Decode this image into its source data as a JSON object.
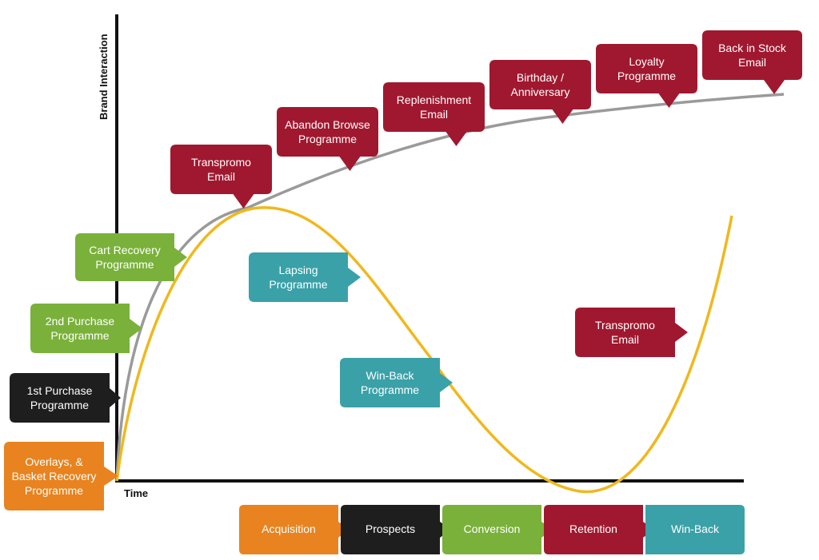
{
  "axes": {
    "y_label": "Brand Interaction",
    "x_label": "Time"
  },
  "colors": {
    "red": "#a0182f",
    "green": "#7ab13a",
    "teal": "#3aa1a8",
    "black": "#1e1e1e",
    "orange": "#e8831f",
    "gray_curve": "#9a9a9a",
    "yellow_curve": "#f0b81d"
  },
  "callouts": [
    {
      "id": "overlays",
      "lines": [
        "Overlays, &",
        "Basket Recovery",
        "Programme"
      ],
      "color": "orange"
    },
    {
      "id": "first-purchase",
      "lines": [
        "1st Purchase",
        "Programme"
      ],
      "color": "black"
    },
    {
      "id": "second-purchase",
      "lines": [
        "2nd Purchase",
        "Programme"
      ],
      "color": "green"
    },
    {
      "id": "cart-recovery",
      "lines": [
        "Cart Recovery",
        "Programme"
      ],
      "color": "green"
    },
    {
      "id": "transpromo-top",
      "lines": [
        "Transpromo",
        "Email"
      ],
      "color": "red"
    },
    {
      "id": "abandon-browse",
      "lines": [
        "Abandon Browse",
        "Programme"
      ],
      "color": "red"
    },
    {
      "id": "replenishment",
      "lines": [
        "Replenishment",
        "Email"
      ],
      "color": "red"
    },
    {
      "id": "birthday",
      "lines": [
        "Birthday /",
        "Anniversary"
      ],
      "color": "red"
    },
    {
      "id": "loyalty",
      "lines": [
        "Loyalty",
        "Programme"
      ],
      "color": "red"
    },
    {
      "id": "back-in-stock",
      "lines": [
        "Back in Stock",
        "Email"
      ],
      "color": "red"
    },
    {
      "id": "lapsing",
      "lines": [
        "Lapsing",
        "Programme"
      ],
      "color": "teal"
    },
    {
      "id": "win-back-programme",
      "lines": [
        "Win-Back",
        "Programme"
      ],
      "color": "teal"
    },
    {
      "id": "transpromo-right",
      "lines": [
        "Transpromo",
        "Email"
      ],
      "color": "red"
    }
  ],
  "stages": [
    {
      "id": "acquisition",
      "label": "Acquisition",
      "color": "orange"
    },
    {
      "id": "prospects",
      "label": "Prospects",
      "color": "black"
    },
    {
      "id": "conversion",
      "label": "Conversion",
      "color": "green"
    },
    {
      "id": "retention",
      "label": "Retention",
      "color": "red"
    },
    {
      "id": "win-back",
      "label": "Win-Back",
      "color": "teal"
    }
  ]
}
